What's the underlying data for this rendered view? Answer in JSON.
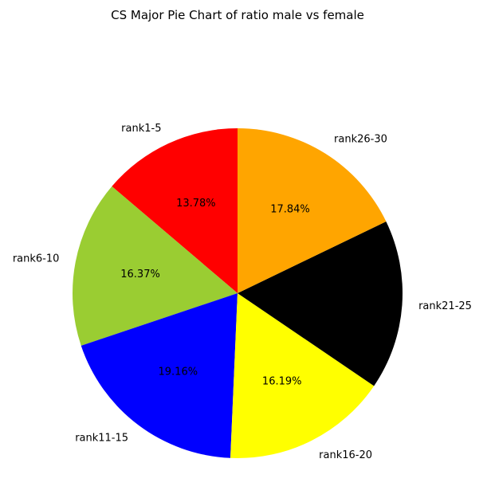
{
  "chart_data": {
    "type": "pie",
    "title": "CS Major Pie Chart of ratio male vs female",
    "slices": [
      {
        "label": "rank1-5",
        "value": 13.78,
        "pct_label": "13.78%",
        "color": "#ff0000"
      },
      {
        "label": "rank6-10",
        "value": 16.37,
        "pct_label": "16.37%",
        "color": "#9acd32"
      },
      {
        "label": "rank11-15",
        "value": 19.16,
        "pct_label": "19.16%",
        "color": "#0000ff"
      },
      {
        "label": "rank16-20",
        "value": 16.19,
        "pct_label": "16.19%",
        "color": "#ffff00"
      },
      {
        "label": "rank21-25",
        "value": 16.66,
        "pct_label": "",
        "color": "#000000"
      },
      {
        "label": "rank26-30",
        "value": 17.84,
        "pct_label": "17.84%",
        "color": "#ffa500"
      }
    ],
    "start_angle_deg": 90,
    "direction": "counterclockwise",
    "legend": "none"
  }
}
